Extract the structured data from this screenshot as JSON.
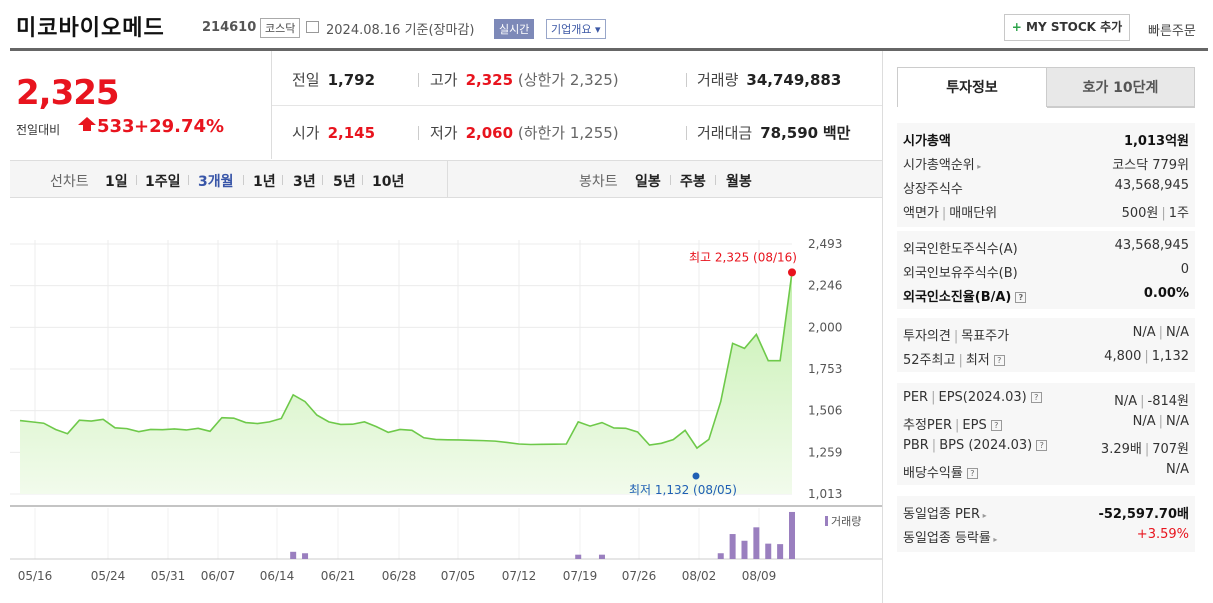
{
  "header": {
    "name": "미코바이오메드",
    "code": "214610",
    "market": "코스닥",
    "date": "2024.08.16 기준(장마감)",
    "realtime": "실시간",
    "overview": "기업개요",
    "mystock": "MY STOCK 추가",
    "quick_order": "빠른주문"
  },
  "price": {
    "current": "2,325",
    "change_label": "전일대비",
    "change": "533",
    "change_pct": "+29.74%"
  },
  "quote": {
    "prev_label": "전일",
    "prev": "1,792",
    "high_label": "고가",
    "high": "2,325",
    "high_note": "(상한가 2,325)",
    "volume_label": "거래량",
    "volume": "34,749,883",
    "open_label": "시가",
    "open": "2,145",
    "low_label": "저가",
    "low": "2,060",
    "low_note": "(하한가 1,255)",
    "amount_label": "거래대금",
    "amount": "78,590",
    "amount_unit": "백만"
  },
  "periods": {
    "line_label": "선차트",
    "items": [
      "1일",
      "1주일",
      "3개월",
      "1년",
      "3년",
      "5년",
      "10년"
    ],
    "active": "3개월",
    "candle_label": "봉차트",
    "candle_items": [
      "일봉",
      "주봉",
      "월봉"
    ]
  },
  "chart_data": {
    "type": "area",
    "x_ticks": [
      "05/16",
      "05/24",
      "05/31",
      "06/07",
      "06/14",
      "06/21",
      "06/28",
      "07/05",
      "07/12",
      "07/19",
      "07/26",
      "08/02",
      "08/09"
    ],
    "y_ticks": [
      "2,493",
      "2,246",
      "2,000",
      "1,753",
      "1,506",
      "1,259",
      "1,013"
    ],
    "ylim": [
      1013,
      2493
    ],
    "values": [
      1448,
      1440,
      1432,
      1395,
      1370,
      1450,
      1445,
      1455,
      1405,
      1400,
      1382,
      1395,
      1394,
      1398,
      1392,
      1402,
      1384,
      1465,
      1462,
      1436,
      1430,
      1440,
      1460,
      1600,
      1560,
      1480,
      1440,
      1425,
      1426,
      1440,
      1412,
      1378,
      1395,
      1390,
      1346,
      1336,
      1334,
      1333,
      1331,
      1329,
      1326,
      1318,
      1309,
      1306,
      1307,
      1308,
      1309,
      1440,
      1415,
      1436,
      1404,
      1402,
      1380,
      1303,
      1313,
      1335,
      1390,
      1285,
      1336,
      1560,
      1905,
      1875,
      1958,
      1802,
      1802,
      2325
    ],
    "max_label": "최고 2,325 (08/16)",
    "min_label": "최저 1,132 (08/05)",
    "volume_label": "거래량",
    "volumes": [
      0,
      0,
      0,
      0,
      0,
      0,
      0,
      0,
      0,
      0,
      0,
      0,
      0,
      0,
      0,
      0,
      0,
      0,
      0,
      0,
      0,
      0,
      0,
      0.15,
      0.12,
      0,
      0,
      0,
      0,
      0,
      0,
      0,
      0,
      0,
      0,
      0,
      0,
      0,
      0,
      0,
      0,
      0,
      0,
      0,
      0,
      0,
      0,
      0.09,
      0,
      0.09,
      0,
      0,
      0,
      0,
      0,
      0,
      0,
      0,
      0,
      0.12,
      0.52,
      0.38,
      0.66,
      0.32,
      0.31,
      0.98
    ]
  },
  "invest": {
    "tab1": "투자정보",
    "tab2": "호가 10단계",
    "g1": [
      {
        "l": "시가총액",
        "v": "1,013억원"
      },
      {
        "l": "시가총액순위",
        "v": "코스닥 779위"
      },
      {
        "l": "상장주식수",
        "v": "43,568,945"
      },
      {
        "l": "액면가",
        "l2": "매매단위",
        "v": "500원",
        "v2": "1주"
      }
    ],
    "g2": [
      {
        "l": "외국인한도주식수(A)",
        "v": "43,568,945"
      },
      {
        "l": "외국인보유주식수(B)",
        "v": "0"
      },
      {
        "l": "외국인소진율(B/A)",
        "v": "0.00%"
      }
    ],
    "g3": [
      {
        "l": "투자의견",
        "l2": "목표주가",
        "v": "N/A",
        "v2": "N/A"
      },
      {
        "l": "52주최고",
        "l2": "최저",
        "v": "4,800",
        "v2": "1,132"
      }
    ],
    "g4": [
      {
        "l": "PER",
        "l2": "EPS(2024.03)",
        "v": "N/A",
        "v2": "-814원"
      },
      {
        "l": "추정PER",
        "l2": "EPS",
        "v": "N/A",
        "v2": "N/A"
      },
      {
        "l": "PBR",
        "l2": "BPS (2024.03)",
        "v": "3.29배",
        "v2": "707원"
      },
      {
        "l": "배당수익률",
        "v": "N/A"
      }
    ],
    "g5": [
      {
        "l": "동일업종 PER",
        "v": "-52,597.70배"
      },
      {
        "l": "동일업종 등락률",
        "v": "+3.59%"
      }
    ]
  },
  "colors": {
    "up": "#e8141e",
    "down": "#1f5fb4",
    "line": "#6ec94a",
    "volume": "#9a7fbf"
  }
}
